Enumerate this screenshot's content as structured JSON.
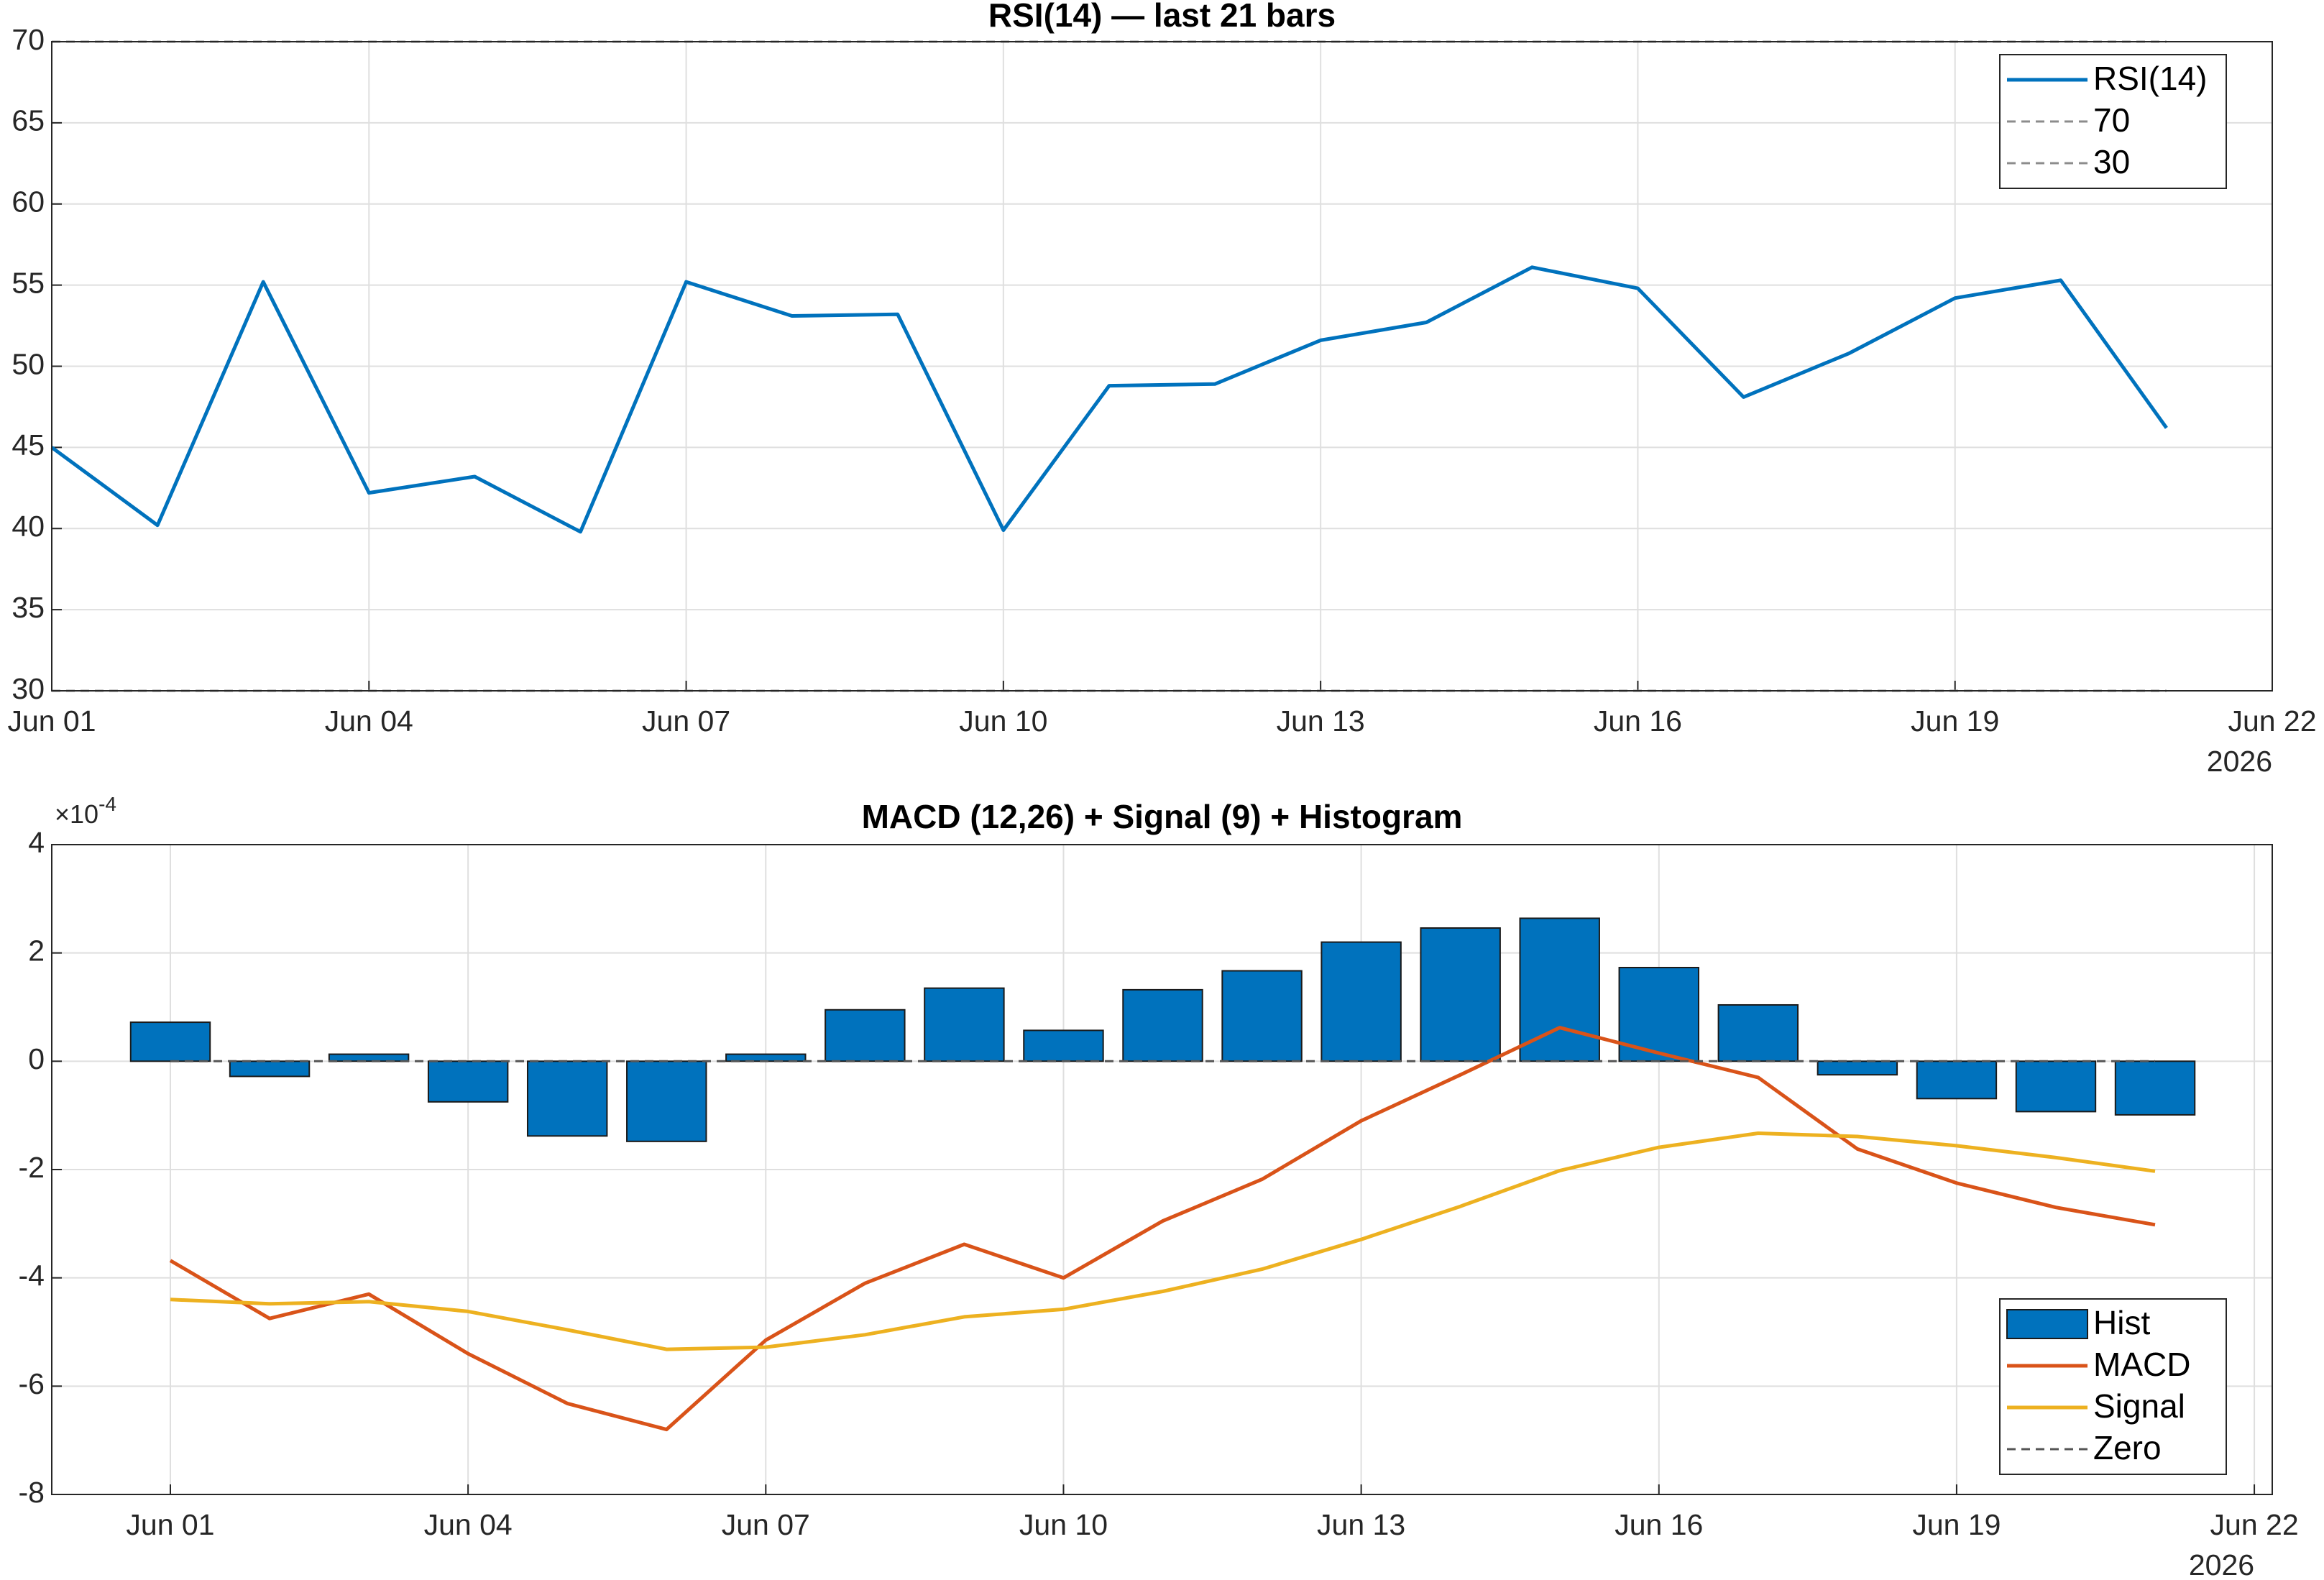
{
  "chart_data": [
    {
      "type": "line",
      "title": "RSI(14) — last 21 bars",
      "x": [
        "2026-06-01",
        "2026-06-02",
        "2026-06-03",
        "2026-06-04",
        "2026-06-05",
        "2026-06-06",
        "2026-06-07",
        "2026-06-08",
        "2026-06-09",
        "2026-06-10",
        "2026-06-11",
        "2026-06-12",
        "2026-06-13",
        "2026-06-14",
        "2026-06-15",
        "2026-06-16",
        "2026-06-17",
        "2026-06-18",
        "2026-06-19",
        "2026-06-20",
        "2026-06-21"
      ],
      "series": [
        {
          "name": "RSI(14)",
          "color": "#0072BD",
          "values": [
            45.0,
            40.2,
            55.2,
            42.2,
            43.2,
            39.8,
            55.2,
            53.1,
            53.2,
            39.9,
            48.8,
            48.9,
            51.6,
            52.7,
            56.1,
            54.8,
            48.1,
            50.8,
            54.2,
            55.3,
            46.2
          ]
        },
        {
          "name": "70",
          "color": "#8c8c8c",
          "line_style": "dashed",
          "values": [
            70,
            70,
            70,
            70,
            70,
            70,
            70,
            70,
            70,
            70,
            70,
            70,
            70,
            70,
            70,
            70,
            70,
            70,
            70,
            70,
            70
          ]
        },
        {
          "name": "30",
          "color": "#8c8c8c",
          "line_style": "dashed",
          "values": [
            30,
            30,
            30,
            30,
            30,
            30,
            30,
            30,
            30,
            30,
            30,
            30,
            30,
            30,
            30,
            30,
            30,
            30,
            30,
            30,
            30
          ]
        }
      ],
      "xlim": [
        "2026-06-01",
        "2026-06-22"
      ],
      "xticks": [
        {
          "value": "2026-06-01",
          "label": "Jun 01"
        },
        {
          "value": "2026-06-04",
          "label": "Jun 04"
        },
        {
          "value": "2026-06-07",
          "label": "Jun 07"
        },
        {
          "value": "2026-06-10",
          "label": "Jun 10"
        },
        {
          "value": "2026-06-13",
          "label": "Jun 13"
        },
        {
          "value": "2026-06-16",
          "label": "Jun 16"
        },
        {
          "value": "2026-06-19",
          "label": "Jun 19"
        },
        {
          "value": "2026-06-22",
          "label": "Jun 22"
        }
      ],
      "x_year_label": "2026",
      "ylim": [
        30,
        70
      ],
      "yticks": [
        30,
        35,
        40,
        45,
        50,
        55,
        60,
        65,
        70
      ],
      "grid": true,
      "legend": "northeast"
    },
    {
      "type": "bar",
      "title": "MACD (12,26) + Signal (9) + Histogram",
      "x": [
        "2026-06-01",
        "2026-06-02",
        "2026-06-03",
        "2026-06-04",
        "2026-06-05",
        "2026-06-06",
        "2026-06-07",
        "2026-06-08",
        "2026-06-09",
        "2026-06-10",
        "2026-06-11",
        "2026-06-12",
        "2026-06-13",
        "2026-06-14",
        "2026-06-15",
        "2026-06-16",
        "2026-06-17",
        "2026-06-18",
        "2026-06-19",
        "2026-06-20",
        "2026-06-21"
      ],
      "series": [
        {
          "name": "Hist",
          "type": "bar",
          "color": "#0072BD",
          "values": [
            0.72,
            -0.28,
            0.13,
            -0.75,
            -1.38,
            -1.48,
            0.13,
            0.95,
            1.35,
            0.57,
            1.32,
            1.67,
            2.2,
            2.46,
            2.64,
            1.73,
            1.04,
            -0.25,
            -0.69,
            -0.93,
            -0.99
          ]
        },
        {
          "name": "MACD",
          "type": "line",
          "color": "#D95319",
          "values": [
            -3.68,
            -4.75,
            -4.3,
            -5.4,
            -6.32,
            -6.8,
            -5.15,
            -4.1,
            -3.38,
            -4.0,
            -2.95,
            -2.18,
            -1.1,
            -0.25,
            0.62,
            0.15,
            -0.3,
            -1.62,
            -2.25,
            -2.7,
            -3.02
          ]
        },
        {
          "name": "Signal",
          "type": "line",
          "color": "#EDB120",
          "values": [
            -4.4,
            -4.48,
            -4.44,
            -4.62,
            -4.96,
            -5.32,
            -5.28,
            -5.05,
            -4.72,
            -4.58,
            -4.25,
            -3.84,
            -3.29,
            -2.68,
            -2.02,
            -1.59,
            -1.33,
            -1.39,
            -1.56,
            -1.78,
            -2.03
          ]
        },
        {
          "name": "Zero",
          "type": "line",
          "color": "#555555",
          "line_style": "dashed",
          "values": [
            0,
            0,
            0,
            0,
            0,
            0,
            0,
            0,
            0,
            0,
            0,
            0,
            0,
            0,
            0,
            0,
            0,
            0,
            0,
            0,
            0
          ]
        }
      ],
      "xlim": [
        "2026-05-30T19:19",
        "2026-06-22T04:20"
      ],
      "xticks": [
        {
          "value": "2026-06-01",
          "label": "Jun 01"
        },
        {
          "value": "2026-06-04",
          "label": "Jun 04"
        },
        {
          "value": "2026-06-07",
          "label": "Jun 07"
        },
        {
          "value": "2026-06-10",
          "label": "Jun 10"
        },
        {
          "value": "2026-06-13",
          "label": "Jun 13"
        },
        {
          "value": "2026-06-16",
          "label": "Jun 16"
        },
        {
          "value": "2026-06-19",
          "label": "Jun 19"
        },
        {
          "value": "2026-06-22",
          "label": "Jun 22"
        }
      ],
      "x_year_label": "2026",
      "ylim": [
        -8,
        4
      ],
      "yticks": [
        -8,
        -6,
        -4,
        -2,
        0,
        2,
        4
      ],
      "y_multiplier": {
        "base": "×10",
        "exponent": "-4"
      },
      "grid": true,
      "legend": "southeast"
    }
  ]
}
